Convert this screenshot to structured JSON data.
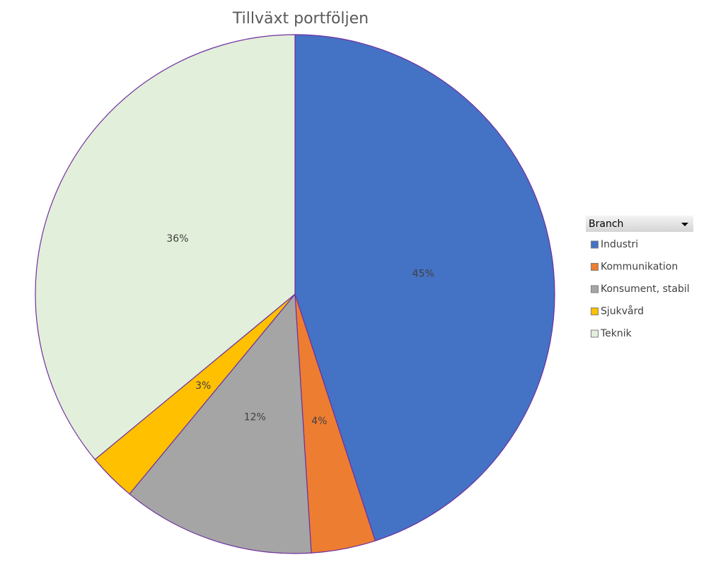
{
  "chart_data": {
    "type": "pie",
    "title": "Tillväxt portföljen",
    "legend_title": "Branch",
    "legend": "right",
    "categories": [
      "Industri",
      "Kommunikation",
      "Konsument, stabil",
      "Sjukvård",
      "Teknik"
    ],
    "values": [
      45,
      4,
      12,
      3,
      36
    ],
    "value_labels": [
      "45%",
      "4%",
      "12%",
      "3%",
      "36%"
    ],
    "colors": [
      "#4472c4",
      "#ed7d31",
      "#a5a5a5",
      "#ffc000",
      "#e2efda"
    ]
  }
}
